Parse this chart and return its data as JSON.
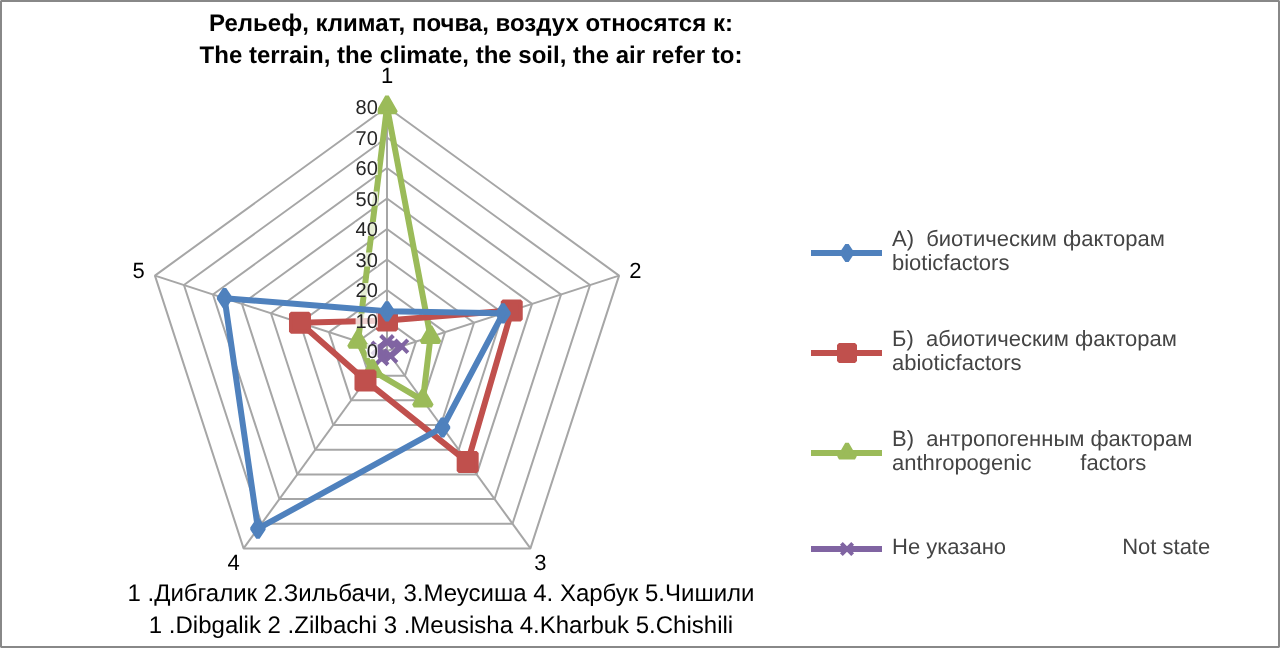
{
  "chart_data": {
    "type": "radar",
    "title": "Рельеф, климат, почва, воздух относятся к:\nThe terrain, the climate, the soil, the air refer to:",
    "categories": [
      "1",
      "2",
      "3",
      "4",
      "5"
    ],
    "ylim": [
      0,
      80
    ],
    "yticks": [
      0,
      10,
      20,
      30,
      40,
      50,
      60,
      70,
      80
    ],
    "grid": true,
    "legend": "right",
    "series": [
      {
        "name": "А)  биотическим факторам\nbioticfactors",
        "color": "#4f81bd",
        "marker": "diamond",
        "values": [
          13,
          40,
          31,
          72,
          56
        ]
      },
      {
        "name": "Б)  абиотическим факторам\nabioticfactors",
        "color": "#c0504d",
        "marker": "square",
        "values": [
          10,
          43,
          45,
          12,
          30
        ]
      },
      {
        "name": "В)  антропогенным факторам\nanthropogenic        factors",
        "color": "#9bbb59",
        "marker": "triangle",
        "values": [
          80,
          15,
          20,
          8,
          10
        ]
      },
      {
        "name": "Не указано                   Not state",
        "color": "#8064a2",
        "marker": "cross",
        "values": [
          3,
          5,
          2,
          3,
          3
        ]
      }
    ],
    "annotations": [
      "1 .Дибгалик 2.Зильбачи, 3.Меусиша 4. Харбук 5.Чишили",
      "1 .Dibgalik 2 .Zilbachi 3 .Meusisha 4.Kharbuk 5.Chishili"
    ]
  }
}
